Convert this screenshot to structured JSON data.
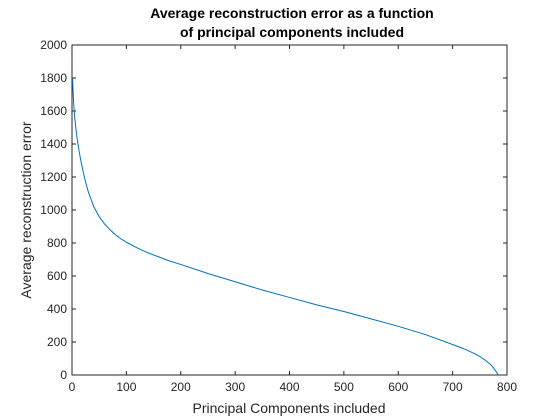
{
  "chart_data": {
    "type": "line",
    "title": [
      "Average reconstruction error as a function",
      "of principal components included"
    ],
    "xlabel": "Principal Components included",
    "ylabel": "Average reconstruction error",
    "xlim": [
      0,
      800
    ],
    "ylim": [
      0,
      2000
    ],
    "xticks": [
      0,
      100,
      200,
      300,
      400,
      500,
      600,
      700,
      800
    ],
    "yticks": [
      0,
      200,
      400,
      600,
      800,
      1000,
      1200,
      1400,
      1600,
      1800,
      2000
    ],
    "grid": false,
    "series": [
      {
        "color": "#0072bd",
        "x": [
          1,
          2,
          3,
          5,
          8,
          10,
          15,
          20,
          25,
          30,
          40,
          50,
          60,
          70,
          80,
          90,
          100,
          120,
          140,
          160,
          180,
          200,
          250,
          300,
          350,
          400,
          450,
          500,
          550,
          600,
          650,
          700,
          720,
          740,
          750,
          760,
          770,
          775,
          780,
          784
        ],
        "y": [
          1800,
          1720,
          1650,
          1560,
          1470,
          1420,
          1320,
          1240,
          1170,
          1110,
          1020,
          960,
          915,
          880,
          850,
          825,
          805,
          770,
          740,
          715,
          690,
          670,
          615,
          565,
          515,
          470,
          425,
          385,
          340,
          295,
          245,
          185,
          160,
          130,
          112,
          90,
          62,
          45,
          20,
          0
        ]
      }
    ]
  }
}
